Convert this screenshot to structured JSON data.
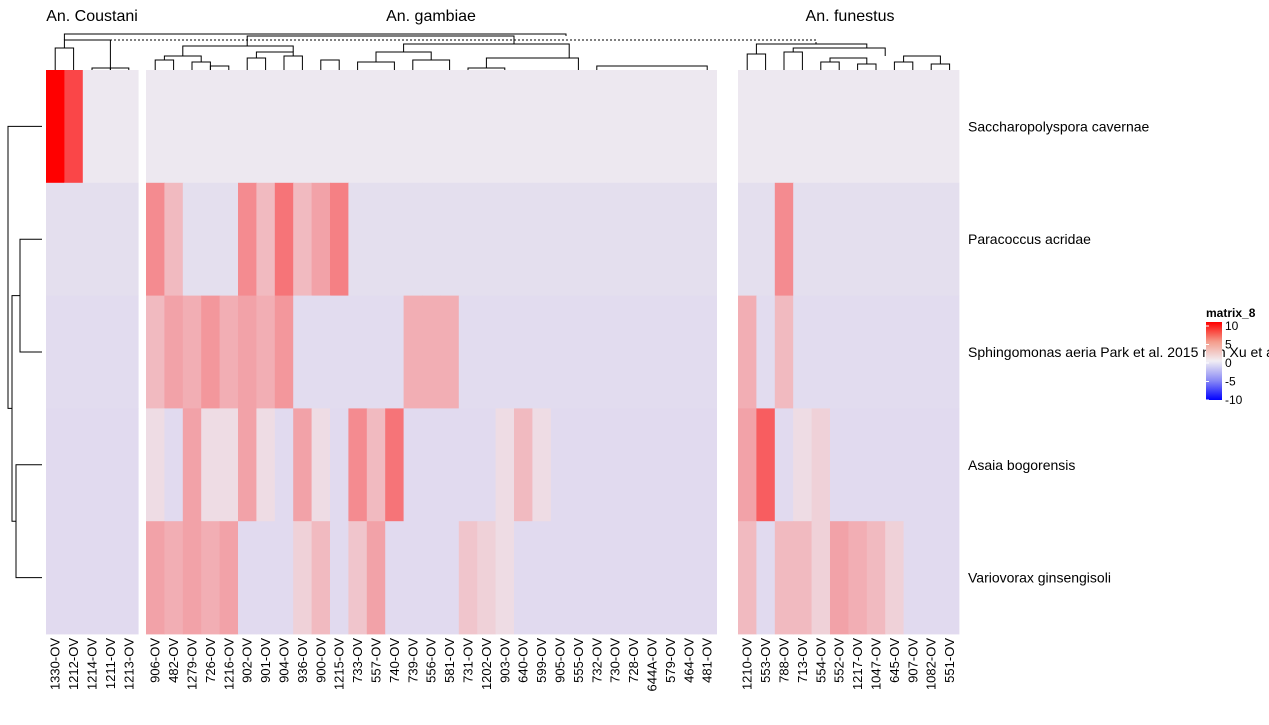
{
  "chart_data": {
    "type": "heatmap",
    "column_groups": [
      {
        "name": "An. Coustani",
        "columns": [
          "1330-OV",
          "1212-OV",
          "1214-OV",
          "1211-OV",
          "1213-OV"
        ]
      },
      {
        "name": "An. gambiae",
        "columns": [
          "906-OV",
          "482-OV",
          "1279-OV",
          "726-OV",
          "1216-OV",
          "902-OV",
          "901-OV",
          "904-OV",
          "936-OV",
          "900-OV",
          "1215-OV",
          "733-OV",
          "557-OV",
          "740-OV",
          "739-OV",
          "556-OV",
          "581-OV",
          "731-OV",
          "1202-OV",
          "903-OV",
          "640-OV",
          "599-OV",
          "905-OV",
          "555-OV",
          "732-OV",
          "730-OV",
          "728-OV",
          "644A-OV",
          "579-OV",
          "464-OV",
          "481-OV"
        ]
      },
      {
        "name": "An. funestus",
        "columns": [
          "1210-OV",
          "553-OV",
          "788-OV",
          "713-OV",
          "554-OV",
          "552-OV",
          "1217-OV",
          "1047-OV",
          "645-OV",
          "907-OV",
          "1082-OV",
          "551-OV"
        ]
      }
    ],
    "rows": [
      {
        "name": "Saccharopolyspora cavernae",
        "values": [
          10,
          7,
          0,
          0,
          0,
          0,
          0,
          0,
          0,
          0,
          0,
          0,
          0,
          0,
          0,
          0,
          0,
          0,
          0,
          0,
          0,
          0,
          0,
          0,
          0,
          0,
          0,
          0,
          0,
          0,
          0,
          0,
          0,
          0,
          0,
          0,
          0,
          0,
          0,
          0,
          0,
          0,
          0,
          0,
          0,
          0,
          0,
          0
        ]
      },
      {
        "name": "Paracoccus acridae",
        "values": [
          -1,
          -1,
          -1,
          -1,
          -1,
          4,
          2,
          -1,
          -1,
          -1,
          4,
          2,
          5,
          2,
          3,
          4.5,
          -1,
          -1,
          -1,
          -1,
          -1,
          -1,
          -1,
          -1,
          -1,
          -1,
          -1,
          -1,
          -1,
          -1,
          -1,
          -1,
          -1,
          -1,
          -1,
          -1,
          -1,
          -1,
          4,
          -1,
          -1,
          -1,
          -1,
          -1,
          -1,
          -1,
          -1,
          -1
        ]
      },
      {
        "name": "Sphingomonas aeria Park et al. 2015 non Xu et al. 2016",
        "values": [
          -1.5,
          -1.5,
          -1.5,
          -1.5,
          -1.5,
          2,
          3,
          2.5,
          3.5,
          2.5,
          3,
          2.5,
          3.5,
          -1.5,
          -1.5,
          -1.5,
          -1.5,
          -1.5,
          -1.5,
          2.5,
          2.5,
          2.5,
          -1.5,
          -1.5,
          -1.5,
          -1.5,
          -1.5,
          -1.5,
          -1.5,
          -1.5,
          -1.5,
          -1.5,
          -1.5,
          -1.5,
          -1.5,
          -1.5,
          2.5,
          -1.5,
          2,
          -1.5,
          -1.5,
          -1.5,
          -1.5,
          -1.5,
          -1.5,
          -1.5,
          -1.5,
          -1.5
        ]
      },
      {
        "name": "Asaia bogorensis",
        "values": [
          -2,
          -2,
          -2,
          -2,
          -2,
          0.5,
          -2,
          3,
          0.5,
          0.5,
          3,
          0.5,
          -2,
          3,
          0.5,
          -2,
          4,
          2,
          5,
          -2,
          -2,
          -2,
          -2,
          -2,
          0.5,
          2,
          0.5,
          -2,
          -2,
          -2,
          -2,
          -2,
          -2,
          -2,
          -2,
          -2,
          3,
          6,
          -2,
          0.5,
          1,
          -2,
          -2,
          -2,
          -2,
          -2,
          -2,
          -2
        ]
      },
      {
        "name": "Variovorax ginsengisoli",
        "values": [
          -2,
          -2,
          -2,
          -2,
          -2,
          3,
          2.5,
          3,
          2.5,
          3,
          -2,
          -2,
          -2,
          1,
          2,
          -2,
          1.5,
          3,
          -2,
          -2,
          -2,
          -2,
          1.5,
          1,
          0.5,
          -2,
          -2,
          -2,
          -2,
          -2,
          -2,
          -2,
          -2,
          -2,
          -2,
          -2,
          2,
          -2,
          2,
          2,
          1,
          3,
          2.5,
          2,
          1,
          -2,
          -2,
          -2
        ]
      }
    ],
    "legend": {
      "title": "matrix_8",
      "ticks": [
        10,
        5,
        0,
        -5,
        -10
      ],
      "colors": {
        "high": "#ff0000",
        "mid": "#e8e4ee",
        "low": "#0000ff"
      }
    },
    "grid": false,
    "legend_position": "right"
  }
}
